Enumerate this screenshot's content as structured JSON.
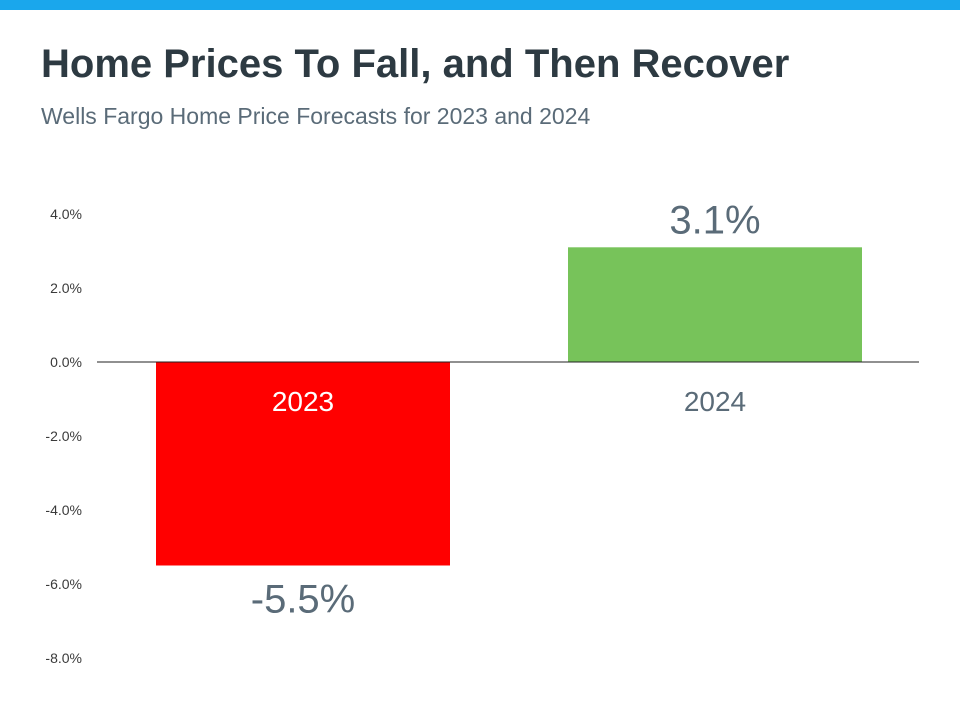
{
  "header": {
    "title": "Home Prices To Fall, and Then Recover",
    "subtitle": "Wells Fargo Home Price Forecasts for 2023 and 2024"
  },
  "colors": {
    "top_bar": "#1aa7ec",
    "bar_2023": "#ff0000",
    "bar_2024": "#77c35a",
    "category_label_2023": "#ffffff",
    "category_label_2024": "#5a6b78",
    "axis_line": "#222222"
  },
  "chart_data": {
    "type": "bar",
    "categories": [
      "2023",
      "2024"
    ],
    "values": [
      -5.5,
      3.1
    ],
    "data_labels": [
      "-5.5%",
      "3.1%"
    ],
    "ylim": [
      -8,
      4
    ],
    "yticks": [
      4,
      2,
      0,
      -2,
      -4,
      -6,
      -8
    ],
    "ytick_labels": [
      "4.0%",
      "2.0%",
      "0.0%",
      "-2.0%",
      "-4.0%",
      "-6.0%",
      "-8.0%"
    ],
    "grid": false,
    "legend": "none"
  }
}
